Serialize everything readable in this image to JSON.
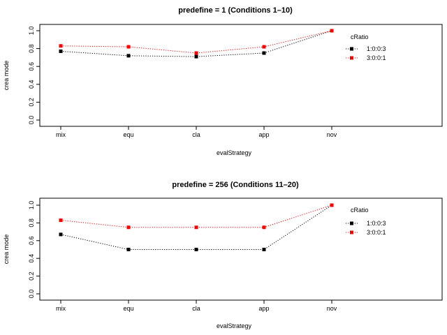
{
  "chart_data": [
    {
      "type": "line",
      "title": "predefine = 1 (Conditions 1–10)",
      "xlabel": "evalStrategy",
      "ylabel": "crea mode",
      "categories": [
        "mix",
        "equ",
        "cla",
        "app",
        "nov"
      ],
      "ylim": [
        0,
        1
      ],
      "yticks": [
        "0.0",
        "0.2",
        "0.4",
        "0.6",
        "0.8",
        "1.0"
      ],
      "grid": false,
      "legend_title": "cRatio",
      "legend_position": "right",
      "series": [
        {
          "name": "1:0:0:3",
          "color": "#000000",
          "values": [
            0.77,
            0.72,
            0.71,
            0.75,
            1.0
          ]
        },
        {
          "name": "3:0:0:1",
          "color": "#ff0000",
          "values": [
            0.83,
            0.82,
            0.75,
            0.82,
            1.0
          ]
        }
      ]
    },
    {
      "type": "line",
      "title": "predefine = 256 (Conditions 11–20)",
      "xlabel": "evalStrategy",
      "ylabel": "crea mode",
      "categories": [
        "mix",
        "equ",
        "cla",
        "app",
        "nov"
      ],
      "ylim": [
        0,
        1
      ],
      "yticks": [
        "0.0",
        "0.2",
        "0.4",
        "0.6",
        "0.8",
        "1.0"
      ],
      "grid": false,
      "legend_title": "cRatio",
      "legend_position": "right",
      "series": [
        {
          "name": "1:0:0:3",
          "color": "#000000",
          "values": [
            0.67,
            0.5,
            0.5,
            0.5,
            1.0
          ]
        },
        {
          "name": "3:0:0:1",
          "color": "#ff0000",
          "values": [
            0.83,
            0.75,
            0.75,
            0.75,
            1.0
          ]
        }
      ]
    }
  ]
}
